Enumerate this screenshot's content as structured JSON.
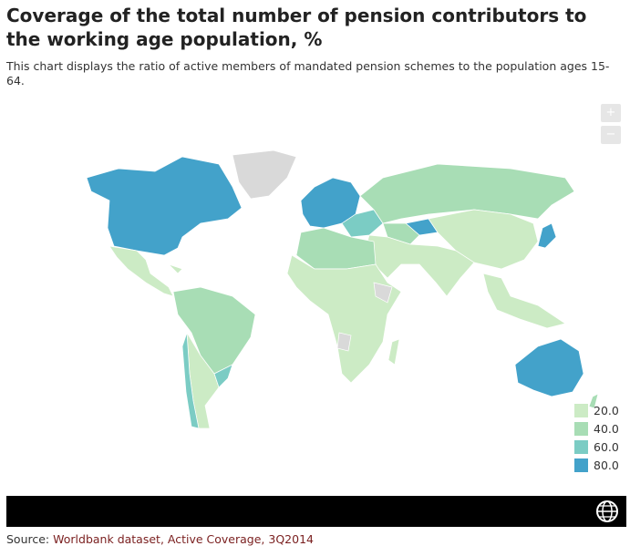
{
  "header": {
    "title": "Coverage of the total number of pension contributors to the working age population, %",
    "subtitle": "This chart displays the ratio of active members of mandated pension schemes to the population ages 15-64."
  },
  "zoom": {
    "in": "+",
    "out": "−"
  },
  "legend": [
    {
      "label": "20.0",
      "color": "#ccebc5"
    },
    {
      "label": "40.0",
      "color": "#a8ddb5"
    },
    {
      "label": "60.0",
      "color": "#7bccc4"
    },
    {
      "label": "80.0",
      "color": "#43a2ca"
    }
  ],
  "no_data_color": "#d9d9d9",
  "source": {
    "label": "Source:",
    "link": "Worldbank dataset, Active Coverage, 3Q2014"
  }
}
